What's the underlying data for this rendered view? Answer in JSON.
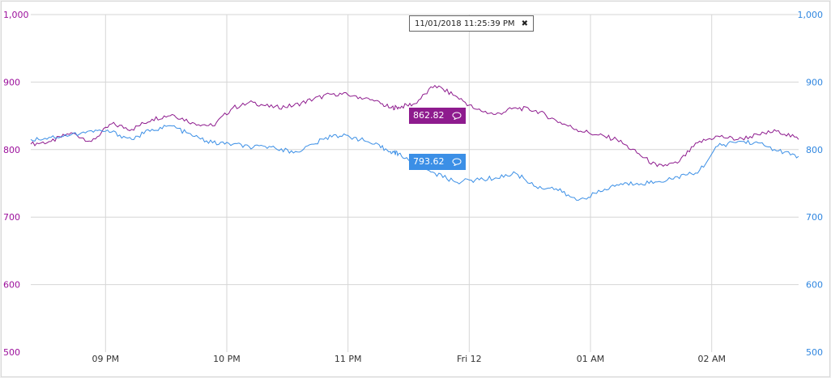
{
  "cursor": {
    "timestamp": "11/01/2018 11:25:39 PM",
    "close_glyph": "✖"
  },
  "colors": {
    "series_a": "#8e1b8e",
    "series_b": "#3b8fe6",
    "grid": "#d6d6d6",
    "cursor_line": "#000000"
  },
  "chart_data": {
    "type": "line",
    "x_ticks": [
      "09 PM",
      "10 PM",
      "11 PM",
      "Fri 12",
      "01 AM",
      "02 AM"
    ],
    "x_range": [
      "11/01/2018 8:23 PM",
      "11/12/2018 2:43 AM"
    ],
    "cursor_time": "11/01/2018 11:25:39 PM",
    "y_left": {
      "range": [
        500,
        1000
      ],
      "ticks": [
        "500",
        "600",
        "700",
        "800",
        "900",
        "1,000"
      ]
    },
    "y_right": {
      "range": [
        500,
        1000
      ],
      "ticks": [
        "500",
        "600",
        "700",
        "800",
        "900",
        "1,000"
      ]
    },
    "grid": true,
    "series": [
      {
        "axis": "left",
        "cursor_value": "862.82",
        "points": [
          [
            "8:23 PM",
            808
          ],
          [
            "8:33 PM",
            812
          ],
          [
            "8:43 PM",
            825
          ],
          [
            "8:53 PM",
            812
          ],
          [
            "9:03 PM",
            838
          ],
          [
            "9:13 PM",
            830
          ],
          [
            "9:23 PM",
            845
          ],
          [
            "9:33 PM",
            852
          ],
          [
            "9:43 PM",
            840
          ],
          [
            "9:53 PM",
            835
          ],
          [
            "10:03 PM",
            862
          ],
          [
            "10:13 PM",
            870
          ],
          [
            "10:23 PM",
            862
          ],
          [
            "10:33 PM",
            865
          ],
          [
            "10:43 PM",
            875
          ],
          [
            "10:53 PM",
            883
          ],
          [
            "11:03 PM",
            880
          ],
          [
            "11:13 PM",
            872
          ],
          [
            "11:21 PM",
            862
          ],
          [
            "11:25 PM",
            862.82
          ],
          [
            "11:33 PM",
            868
          ],
          [
            "11:43 PM",
            895
          ],
          [
            "11:53 PM",
            880
          ],
          [
            "12:03 AM",
            860
          ],
          [
            "12:13 AM",
            852
          ],
          [
            "12:23 AM",
            862
          ],
          [
            "12:33 AM",
            858
          ],
          [
            "12:43 AM",
            843
          ],
          [
            "12:53 AM",
            830
          ],
          [
            "1:03 AM",
            822
          ],
          [
            "1:13 AM",
            815
          ],
          [
            "1:23 AM",
            795
          ],
          [
            "1:33 AM",
            775
          ],
          [
            "1:43 AM",
            780
          ],
          [
            "1:53 AM",
            810
          ],
          [
            "2:03 AM",
            820
          ],
          [
            "2:13 AM",
            815
          ],
          [
            "2:23 AM",
            822
          ],
          [
            "2:33 AM",
            828
          ],
          [
            "2:43 AM",
            815
          ]
        ]
      },
      {
        "axis": "right",
        "cursor_value": "793.62",
        "points": [
          [
            "8:23 PM",
            815
          ],
          [
            "8:33 PM",
            818
          ],
          [
            "8:43 PM",
            822
          ],
          [
            "8:53 PM",
            828
          ],
          [
            "9:03 PM",
            826
          ],
          [
            "9:13 PM",
            815
          ],
          [
            "9:23 PM",
            830
          ],
          [
            "9:33 PM",
            835
          ],
          [
            "9:43 PM",
            820
          ],
          [
            "9:53 PM",
            810
          ],
          [
            "10:03 PM",
            808
          ],
          [
            "10:13 PM",
            803
          ],
          [
            "10:23 PM",
            805
          ],
          [
            "10:33 PM",
            795
          ],
          [
            "10:43 PM",
            808
          ],
          [
            "10:53 PM",
            822
          ],
          [
            "11:03 PM",
            818
          ],
          [
            "11:13 PM",
            808
          ],
          [
            "11:21 PM",
            797
          ],
          [
            "11:25 PM",
            793.62
          ],
          [
            "11:33 PM",
            780
          ],
          [
            "11:43 PM",
            765
          ],
          [
            "11:53 PM",
            752
          ],
          [
            "12:03 AM",
            755
          ],
          [
            "12:13 AM",
            758
          ],
          [
            "12:23 AM",
            765
          ],
          [
            "12:33 AM",
            745
          ],
          [
            "12:43 AM",
            742
          ],
          [
            "12:53 AM",
            725
          ],
          [
            "1:03 AM",
            735
          ],
          [
            "1:13 AM",
            748
          ],
          [
            "1:23 AM",
            750
          ],
          [
            "1:33 AM",
            752
          ],
          [
            "1:43 AM",
            760
          ],
          [
            "1:53 AM",
            765
          ],
          [
            "2:03 AM",
            805
          ],
          [
            "2:13 AM",
            812
          ],
          [
            "2:23 AM",
            810
          ],
          [
            "2:33 AM",
            798
          ],
          [
            "2:43 AM",
            790
          ]
        ]
      }
    ]
  }
}
